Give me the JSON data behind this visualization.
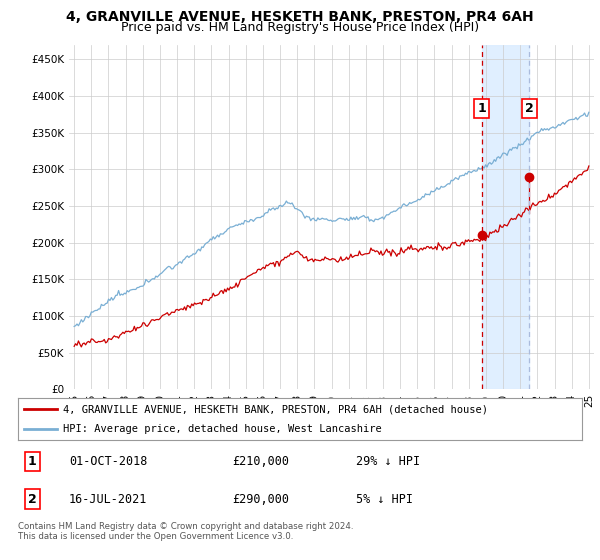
{
  "title": "4, GRANVILLE AVENUE, HESKETH BANK, PRESTON, PR4 6AH",
  "subtitle": "Price paid vs. HM Land Registry's House Price Index (HPI)",
  "ylim": [
    0,
    470000
  ],
  "yticks": [
    0,
    50000,
    100000,
    150000,
    200000,
    250000,
    300000,
    350000,
    400000,
    450000
  ],
  "xmin": 1994.7,
  "xmax": 2025.3,
  "background_color": "#ffffff",
  "grid_color": "#cccccc",
  "hpi_color": "#7aafd4",
  "price_color": "#cc0000",
  "sale1_x": 2018.75,
  "sale2_x": 2021.54,
  "sale1_y": 210000,
  "sale2_y": 290000,
  "shade_color": "#ddeeff",
  "dashed1_color": "#cc0000",
  "dashed2_color": "#aabbdd",
  "legend_line1": "4, GRANVILLE AVENUE, HESKETH BANK, PRESTON, PR4 6AH (detached house)",
  "legend_line2": "HPI: Average price, detached house, West Lancashire",
  "table_row1": [
    "1",
    "01-OCT-2018",
    "£210,000",
    "29% ↓ HPI"
  ],
  "table_row2": [
    "2",
    "16-JUL-2021",
    "£290,000",
    "5% ↓ HPI"
  ],
  "footnote": "Contains HM Land Registry data © Crown copyright and database right 2024.\nThis data is licensed under the Open Government Licence v3.0.",
  "title_fontsize": 10,
  "subtitle_fontsize": 9,
  "tick_fontsize": 7.5,
  "legend_fontsize": 7.5
}
